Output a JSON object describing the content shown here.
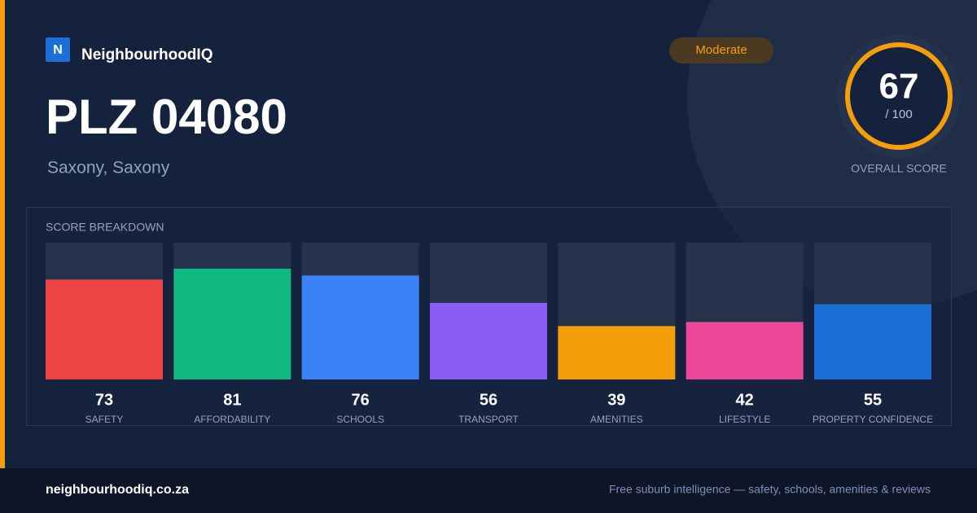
{
  "brand": {
    "logo": "N",
    "name": "NeighbourhoodIQ"
  },
  "badge": "Moderate",
  "heading": {
    "title": "PLZ 04080",
    "subtitle": "Saxony, Saxony"
  },
  "overall": {
    "score": 67,
    "scale_label": "/ 100",
    "label": "OVERALL SCORE"
  },
  "chart_data": {
    "type": "bar",
    "title": "SCORE BREAKDOWN",
    "categories": [
      "SAFETY",
      "AFFORDABILITY",
      "SCHOOLS",
      "TRANSPORT",
      "AMENITIES",
      "LIFESTYLE",
      "PROPERTY CONFIDENCE"
    ],
    "values": [
      73,
      81,
      76,
      56,
      39,
      42,
      55
    ],
    "colors": [
      "#ef4444",
      "#10b981",
      "#3b82f6",
      "#8b5cf6",
      "#f59e0b",
      "#ec4899",
      "#1d6fd8"
    ],
    "ylim": [
      0,
      100
    ]
  },
  "footer": {
    "site": "neighbourhoodiq.co.za",
    "tagline": "Free suburb intelligence — safety, schools, amenities & reviews"
  }
}
